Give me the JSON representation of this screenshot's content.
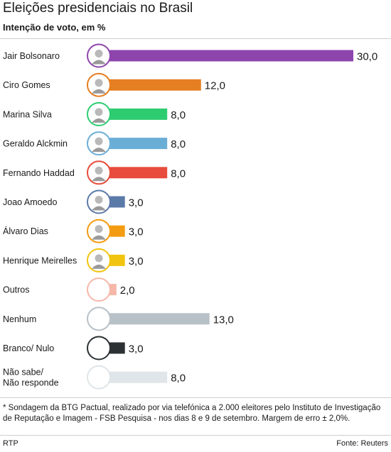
{
  "header": {
    "title": "Eleições presidenciais no Brasil",
    "subtitle": "Intenção de voto, em %"
  },
  "chart_data": {
    "type": "bar",
    "orientation": "horizontal",
    "title": "Eleições presidenciais no Brasil",
    "subtitle": "Intenção de voto, em %",
    "xlim": [
      0,
      30
    ],
    "categories": [
      "Jair Bolsonaro",
      "Ciro Gomes",
      "Marina Silva",
      "Geraldo Alckmin",
      "Fernando Haddad",
      "Joao Amoedo",
      "Álvaro Dias",
      "Henrique Meirelles",
      "Outros",
      "Nenhum",
      "Branco/ Nulo",
      "Não sabe/ Não responde"
    ],
    "label_lines": [
      [
        "Jair Bolsonaro"
      ],
      [
        "Ciro Gomes"
      ],
      [
        "Marina Silva"
      ],
      [
        "Geraldo Alckmin"
      ],
      [
        "Fernando Haddad"
      ],
      [
        "Joao Amoedo"
      ],
      [
        "Álvaro Dias"
      ],
      [
        "Henrique Meirelles"
      ],
      [
        "Outros"
      ],
      [
        "Nenhum"
      ],
      [
        "Branco/ Nulo"
      ],
      [
        "Não sabe/",
        "Não responde"
      ]
    ],
    "values": [
      30.0,
      12.0,
      8.0,
      8.0,
      8.0,
      3.0,
      3.0,
      3.0,
      2.0,
      13.0,
      3.0,
      8.0
    ],
    "value_labels": [
      "30,0",
      "12,0",
      "8,0",
      "8,0",
      "8,0",
      "3,0",
      "3,0",
      "3,0",
      "2,0",
      "13,0",
      "3,0",
      "8,0"
    ],
    "colors": [
      "#8e44ad",
      "#e67e22",
      "#2ecc71",
      "#6aaed6",
      "#e74c3c",
      "#5b7aa8",
      "#f39c12",
      "#f1c40f",
      "#f5b7a8",
      "#b8c1c8",
      "#2c3133",
      "#dfe5e8"
    ],
    "has_photo": [
      true,
      true,
      true,
      true,
      true,
      true,
      true,
      true,
      false,
      false,
      false,
      false
    ],
    "grid": false,
    "legend": "none"
  },
  "footer": {
    "note": "* Sondagem da BTG Pactual, realizado por via telefónica a 2.000 eleitores pelo Instituto de Investigação de Reputação e Imagem - FSB Pesquisa - nos dias 8 e 9 de setembro. Margem de erro ± 2,0%.",
    "credit": "RTP",
    "source": "Fonte: Reuters"
  }
}
